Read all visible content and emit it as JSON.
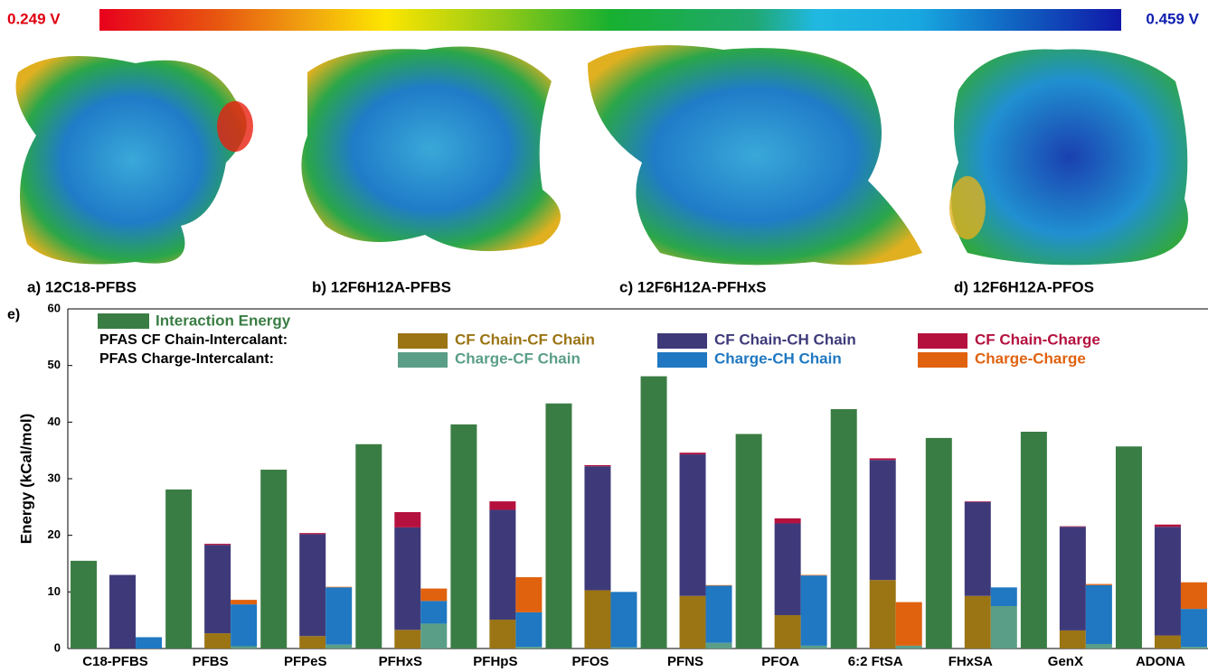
{
  "colorbar": {
    "min_label": "0.249 V",
    "max_label": "0.459 V"
  },
  "panels": [
    "a) 12C18-PFBS",
    "b) 12F6H12A-PFBS",
    "c) 12F6H12A-PFHxS",
    "d) 12F6H12A-PFOS"
  ],
  "chart_data": {
    "type": "grouped-stacked-bar",
    "panel_label": "e)",
    "ylabel": "Energy (kCal/mol)",
    "categories": [
      "C18-PFBS",
      "PFBS",
      "PFPeS",
      "PFHxS",
      "PFHpS",
      "PFOS",
      "PFNS",
      "PFOA",
      "6:2 FtSA",
      "FHxSA",
      "GenX",
      "ADONA"
    ],
    "ylim": [
      0,
      60
    ],
    "yticks": [
      0,
      10,
      20,
      30,
      40,
      50,
      60
    ],
    "series": [
      {
        "name": "Interaction Energy",
        "color": "#3a7d44",
        "values": [
          15.5,
          28.1,
          31.6,
          36.1,
          39.6,
          43.3,
          48.1,
          37.9,
          42.3,
          37.2,
          38.3,
          35.7
        ]
      }
    ],
    "groups": [
      {
        "label": "PFAS CF Chain-Intercalant:",
        "series": [
          {
            "name": "CF Chain-CF Chain",
            "color": "#9b7414",
            "values": [
              0,
              2.7,
              2.2,
              3.3,
              5.1,
              10.3,
              9.3,
              5.9,
              12.1,
              9.3,
              3.2,
              2.3
            ]
          },
          {
            "name": "CF Chain-CH Chain",
            "color": "#3e3a7a",
            "values": [
              13.0,
              15.6,
              18.0,
              18.1,
              19.4,
              21.9,
              25.0,
              16.2,
              21.2,
              16.6,
              18.3,
              19.2
            ]
          },
          {
            "name": "CF Chain-Charge",
            "color": "#b5113f",
            "values": [
              0,
              0.2,
              0.2,
              2.7,
              1.5,
              0.2,
              0.3,
              0.9,
              0.3,
              0.1,
              0.1,
              0.4
            ]
          }
        ]
      },
      {
        "label": "PFAS Charge-Intercalant:",
        "series": [
          {
            "name": "Charge-CF Chain",
            "color": "#5a9e88",
            "values": [
              0,
              0.4,
              0.7,
              4.4,
              0.3,
              0.2,
              1.0,
              0.5,
              0.5,
              7.5,
              0.8,
              0.3
            ]
          },
          {
            "name": "Charge-CH Chain",
            "color": "#1f78c1",
            "values": [
              2.0,
              7.4,
              10.1,
              4.0,
              6.1,
              9.8,
              10.1,
              12.4,
              0,
              3.3,
              10.4,
              6.7
            ]
          },
          {
            "name": "Charge-Charge",
            "color": "#e0620f",
            "values": [
              0,
              0.8,
              0.1,
              2.2,
              6.2,
              0,
              0.1,
              0.1,
              7.7,
              0,
              0.2,
              4.7
            ]
          }
        ]
      }
    ]
  }
}
